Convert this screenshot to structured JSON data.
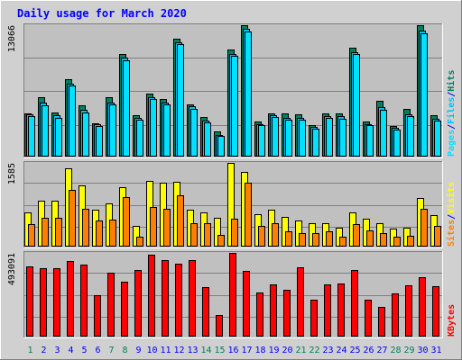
{
  "chart_data": {
    "type": "bar",
    "title": "Daily usage for March 2020",
    "categories": [
      "1",
      "2",
      "3",
      "4",
      "5",
      "6",
      "7",
      "8",
      "9",
      "10",
      "11",
      "12",
      "13",
      "14",
      "15",
      "16",
      "17",
      "18",
      "19",
      "20",
      "21",
      "22",
      "23",
      "24",
      "25",
      "26",
      "27",
      "28",
      "29",
      "30",
      "31"
    ],
    "weekend_days": [
      "1",
      "7",
      "8",
      "14",
      "15",
      "21",
      "22",
      "28",
      "29"
    ],
    "colors": {
      "hits": "#00805c",
      "files": "#00c0ff",
      "pages": "#00e0ff",
      "visits": "#ffff00",
      "sites": "#ff8000",
      "kbytes": "#ff0000",
      "title": "#0000ff",
      "weekend": "#00805c",
      "weekday": "#0000ff",
      "plot_bg": "#c0c0c0",
      "frame_bg": "#d0d0d0"
    },
    "panels": [
      {
        "id": "hits",
        "max_label": "13066",
        "ymax": 13066,
        "legend": [
          {
            "text": "Pages",
            "color": "#00e0ff"
          },
          {
            "text": "/",
            "color": "#0000ff"
          },
          {
            "text": "Files",
            "color": "#00c0ff"
          },
          {
            "text": "/",
            "color": "#0000ff"
          },
          {
            "text": "Hits",
            "color": "#00805c"
          }
        ],
        "series": [
          {
            "name": "Hits",
            "color": "#00805c",
            "values": [
              4330,
              5880,
              4380,
              7690,
              5100,
              3350,
              5940,
              10190,
              4140,
              6230,
              5690,
              11740,
              5220,
              3980,
              2490,
              10620,
              13066,
              3450,
              4260,
              4260,
              4230,
              3150,
              4260,
              4280,
              10800,
              3470,
              5510,
              3070,
              4760,
              13030,
              4100
            ]
          },
          {
            "name": "Files",
            "color": "#00c0ff",
            "values": [
              4240,
              5390,
              4080,
              7280,
              4650,
              3180,
              5390,
              9880,
              3850,
              5900,
              5390,
              11400,
              4980,
              3590,
              2190,
              10180,
              12670,
              3250,
              4090,
              3850,
              3870,
              2960,
              4050,
              4000,
              10390,
              3250,
              4920,
              2880,
              4210,
              12530,
              3800
            ]
          },
          {
            "name": "Pages",
            "color": "#00e0ff",
            "values": [
              4060,
              5100,
              3880,
              7030,
              4380,
              3020,
              5180,
              9600,
              3650,
              5700,
              5160,
              11200,
              4770,
              3420,
              2050,
              9990,
              12480,
              3100,
              3900,
              3650,
              3700,
              2790,
              3870,
              3800,
              10180,
              3100,
              4680,
              2720,
              4020,
              12300,
              3600
            ]
          }
        ]
      },
      {
        "id": "visits",
        "max_label": "1585",
        "ymax": 1585,
        "legend": [
          {
            "text": "Sites",
            "color": "#ff8000"
          },
          {
            "text": "/",
            "color": "#0000ff"
          },
          {
            "text": "Visits",
            "color": "#ffff00"
          }
        ],
        "series": [
          {
            "name": "Visits",
            "color": "#ffff00",
            "values": [
              640,
              870,
              870,
              1480,
              1165,
              705,
              815,
              1120,
              395,
              1250,
              1205,
              1220,
              705,
              640,
              540,
              1585,
              1410,
              620,
              705,
              570,
              490,
              450,
              450,
              365,
              640,
              520,
              450,
              335,
              365,
              920,
              600
            ]
          },
          {
            "name": "Sites",
            "color": "#ff8000",
            "values": [
              420,
              550,
              550,
              1070,
              710,
              490,
              510,
              930,
              185,
              750,
              710,
              970,
              450,
              440,
              225,
              530,
              1210,
              390,
              450,
              290,
              255,
              255,
              290,
              185,
              430,
              315,
              255,
              185,
              200,
              720,
              400
            ]
          }
        ]
      },
      {
        "id": "kbytes",
        "max_label": "493091",
        "ymax": 493091,
        "legend": [
          {
            "text": "KBytes",
            "color": "#ff0000"
          }
        ],
        "series": [
          {
            "name": "KBytes",
            "color": "#ff0000",
            "values": [
              415000,
              405000,
              405000,
              445000,
              425000,
              246000,
              375000,
              325000,
              395000,
              485000,
              449000,
              430000,
              449000,
              293000,
              125000,
              493091,
              387000,
              260000,
              310000,
              275000,
              408000,
              217000,
              310000,
              315000,
              391000,
              217000,
              176000,
              257000,
              300000,
              350000,
              297000
            ]
          }
        ]
      }
    ]
  }
}
